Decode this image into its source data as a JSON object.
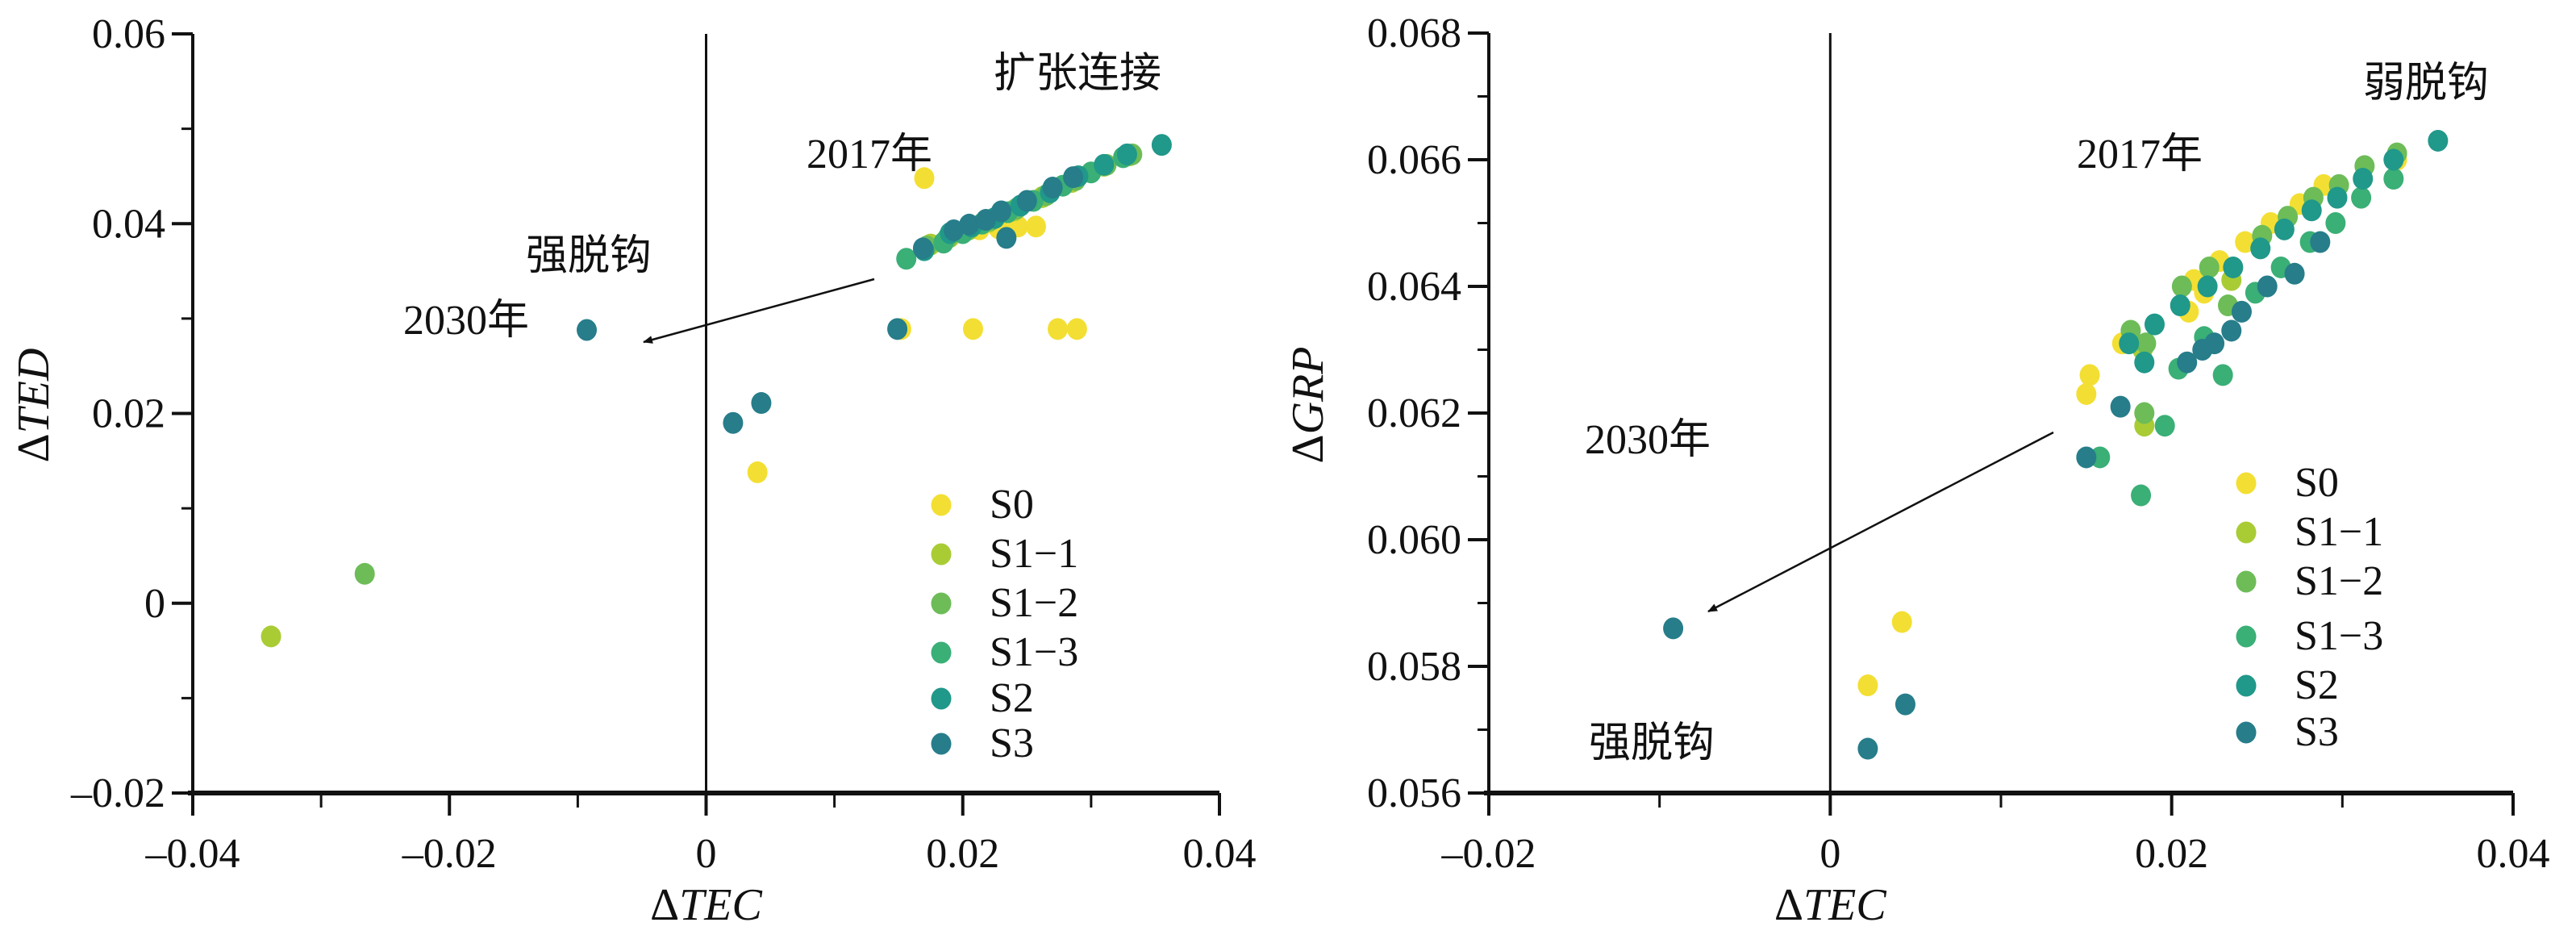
{
  "colors": {
    "S0": "#f3df33",
    "S1-1": "#a9cc35",
    "S1-2": "#6dbc58",
    "S1-3": "#3aaf76",
    "S2": "#20988a",
    "S3": "#277d8a"
  },
  "chart_data": [
    {
      "type": "scatter",
      "title": "",
      "xlabel": {
        "delta": "Δ",
        "var": "TEC"
      },
      "ylabel": {
        "delta": "Δ",
        "var": "TED"
      },
      "xlim": [
        -0.04,
        0.04
      ],
      "ylim": [
        -0.02,
        0.06
      ],
      "x_ticks": [
        {
          "v": -0.04,
          "label": "–0.04"
        },
        {
          "v": -0.02,
          "label": "–0.02"
        },
        {
          "v": 0,
          "label": "0"
        },
        {
          "v": 0.02,
          "label": "0.02"
        },
        {
          "v": 0.04,
          "label": "0.04"
        }
      ],
      "y_ticks": [
        {
          "v": -0.02,
          "label": "–0.02"
        },
        {
          "v": 0,
          "label": "0"
        },
        {
          "v": 0.02,
          "label": "0.02"
        },
        {
          "v": 0.04,
          "label": "0.04"
        },
        {
          "v": 0.06,
          "label": "0.06"
        }
      ],
      "grid": false,
      "legend_position": "bottom-right",
      "annotations": {
        "quadrant": "扩张连接",
        "start_year": "2017年",
        "end_year": "2030年",
        "end_state": "强脱钩"
      },
      "series": [
        {
          "name": "S0",
          "points": [
            [
              0.017,
              0.0448
            ],
            [
              0.0152,
              0.0289
            ],
            [
              0.0208,
              0.0289
            ],
            [
              0.0274,
              0.0289
            ],
            [
              0.0289,
              0.0289
            ],
            [
              0.0213,
              0.0394
            ],
            [
              0.0228,
              0.0395
            ],
            [
              0.0243,
              0.0397
            ],
            [
              0.0257,
              0.0397
            ],
            [
              0.004,
              0.0138
            ]
          ]
        },
        {
          "name": "S1−1",
          "points": [
            [
              0.0175,
              0.0378
            ],
            [
              0.019,
              0.0386
            ],
            [
              0.0205,
              0.0394
            ],
            [
              0.022,
              0.0402
            ],
            [
              0.024,
              0.0414
            ],
            [
              0.0262,
              0.0428
            ],
            [
              0.0285,
              0.0444
            ],
            [
              0.031,
              0.0461
            ],
            [
              0.033,
              0.0472
            ],
            [
              -0.0339,
              -0.0035
            ]
          ]
        },
        {
          "name": "S1−2",
          "points": [
            [
              0.0172,
              0.0376
            ],
            [
              0.0188,
              0.0385
            ],
            [
              0.0203,
              0.0393
            ],
            [
              0.0222,
              0.0404
            ],
            [
              0.0242,
              0.0416
            ],
            [
              0.0265,
              0.043
            ],
            [
              0.0288,
              0.0446
            ],
            [
              0.0312,
              0.0462
            ],
            [
              0.0332,
              0.0473
            ],
            [
              -0.0266,
              0.0031
            ]
          ]
        },
        {
          "name": "S1−3",
          "points": [
            [
              0.0156,
              0.0363
            ],
            [
              0.0185,
              0.038
            ],
            [
              0.02,
              0.039
            ],
            [
              0.0215,
              0.04
            ],
            [
              0.0235,
              0.0412
            ],
            [
              0.0255,
              0.0424
            ],
            [
              0.0278,
              0.044
            ],
            [
              0.03,
              0.0454
            ],
            [
              0.0325,
              0.047
            ]
          ]
        },
        {
          "name": "S2",
          "points": [
            [
              0.017,
              0.0372
            ],
            [
              0.019,
              0.039
            ],
            [
              0.0207,
              0.0397
            ],
            [
              0.0225,
              0.0406
            ],
            [
              0.0245,
              0.0419
            ],
            [
              0.0268,
              0.0433
            ],
            [
              0.029,
              0.045
            ],
            [
              0.031,
              0.0462
            ],
            [
              0.0328,
              0.0473
            ],
            [
              0.0355,
              0.0483
            ]
          ]
        },
        {
          "name": "S3",
          "points": [
            [
              -0.0093,
              0.0288
            ],
            [
              0.0149,
              0.0289
            ],
            [
              0.0021,
              0.019
            ],
            [
              0.0043,
              0.0211
            ],
            [
              0.0169,
              0.0374
            ],
            [
              0.0193,
              0.0393
            ],
            [
              0.0205,
              0.0399
            ],
            [
              0.0218,
              0.0404
            ],
            [
              0.0234,
              0.0385
            ],
            [
              0.023,
              0.0413
            ],
            [
              0.025,
              0.0424
            ],
            [
              0.027,
              0.0438
            ],
            [
              0.0286,
              0.0449
            ]
          ]
        }
      ]
    },
    {
      "type": "scatter",
      "title": "",
      "xlabel": {
        "delta": "Δ",
        "var": "TEC"
      },
      "ylabel": {
        "delta": "Δ",
        "var": "GRP"
      },
      "xlim": [
        -0.02,
        0.04
      ],
      "ylim": [
        0.056,
        0.068
      ],
      "x_ticks": [
        {
          "v": -0.02,
          "label": "–0.02"
        },
        {
          "v": 0,
          "label": "0"
        },
        {
          "v": 0.02,
          "label": "0.02"
        },
        {
          "v": 0.04,
          "label": "0.04"
        }
      ],
      "y_ticks": [
        {
          "v": 0.056,
          "label": "0.056"
        },
        {
          "v": 0.058,
          "label": "0.058"
        },
        {
          "v": 0.06,
          "label": "0.060"
        },
        {
          "v": 0.062,
          "label": "0.062"
        },
        {
          "v": 0.064,
          "label": "0.064"
        },
        {
          "v": 0.066,
          "label": "0.066"
        },
        {
          "v": 0.068,
          "label": "0.068"
        }
      ],
      "grid": false,
      "legend_position": "bottom-right",
      "annotations": {
        "quadrant": "弱脱钩",
        "start_year": "2017年",
        "end_year": "2030年",
        "end_state": "强脱钩"
      },
      "series": [
        {
          "name": "S0",
          "points": [
            [
              0.0332,
              0.066
            ],
            [
              0.0289,
              0.0656
            ],
            [
              0.0275,
              0.0653
            ],
            [
              0.0258,
              0.065
            ],
            [
              0.0243,
              0.0647
            ],
            [
              0.0228,
              0.0644
            ],
            [
              0.0213,
              0.0641
            ],
            [
              0.0219,
              0.0639
            ],
            [
              0.021,
              0.0636
            ],
            [
              0.0171,
              0.0631
            ],
            [
              0.0152,
              0.0626
            ],
            [
              0.015,
              0.0623
            ],
            [
              0.0042,
              0.0587
            ],
            [
              0.0022,
              0.0577
            ]
          ]
        },
        {
          "name": "S1−1",
          "points": [
            [
              0.0235,
              0.0641
            ],
            [
              0.0183,
              0.063
            ],
            [
              0.0184,
              0.0618
            ]
          ]
        },
        {
          "name": "S1−2",
          "points": [
            [
              0.0332,
              0.0661
            ],
            [
              0.0313,
              0.0659
            ],
            [
              0.0298,
              0.0656
            ],
            [
              0.0283,
              0.0654
            ],
            [
              0.0268,
              0.0651
            ],
            [
              0.0253,
              0.0648
            ],
            [
              0.0222,
              0.0643
            ],
            [
              0.0206,
              0.064
            ],
            [
              0.0233,
              0.0637
            ],
            [
              0.0176,
              0.0633
            ],
            [
              0.0185,
              0.0631
            ],
            [
              0.0184,
              0.062
            ]
          ]
        },
        {
          "name": "S1−3",
          "points": [
            [
              0.033,
              0.0657
            ],
            [
              0.0311,
              0.0654
            ],
            [
              0.0296,
              0.065
            ],
            [
              0.0281,
              0.0647
            ],
            [
              0.0264,
              0.0643
            ],
            [
              0.0249,
              0.0639
            ],
            [
              0.0219,
              0.0632
            ],
            [
              0.0204,
              0.0627
            ],
            [
              0.023,
              0.0626
            ],
            [
              0.0196,
              0.0618
            ],
            [
              0.0158,
              0.0613
            ],
            [
              0.0182,
              0.0607
            ]
          ]
        },
        {
          "name": "S2",
          "points": [
            [
              0.0356,
              0.0663
            ],
            [
              0.033,
              0.066
            ],
            [
              0.0312,
              0.0657
            ],
            [
              0.0297,
              0.0654
            ],
            [
              0.0282,
              0.0652
            ],
            [
              0.0266,
              0.0649
            ],
            [
              0.0252,
              0.0646
            ],
            [
              0.0236,
              0.0643
            ],
            [
              0.0221,
              0.064
            ],
            [
              0.0205,
              0.0637
            ],
            [
              0.019,
              0.0634
            ],
            [
              0.0175,
              0.0631
            ],
            [
              0.0184,
              0.0628
            ]
          ]
        },
        {
          "name": "S3",
          "points": [
            [
              0.0287,
              0.0647
            ],
            [
              0.0272,
              0.0642
            ],
            [
              0.0256,
              0.064
            ],
            [
              0.0241,
              0.0636
            ],
            [
              0.0235,
              0.0633
            ],
            [
              0.0225,
              0.0631
            ],
            [
              0.0218,
              0.063
            ],
            [
              0.0209,
              0.0628
            ],
            [
              0.017,
              0.0621
            ],
            [
              0.015,
              0.0613
            ],
            [
              -0.0092,
              0.0586
            ],
            [
              0.0044,
              0.0574
            ],
            [
              0.0022,
              0.0567
            ]
          ]
        }
      ]
    }
  ]
}
